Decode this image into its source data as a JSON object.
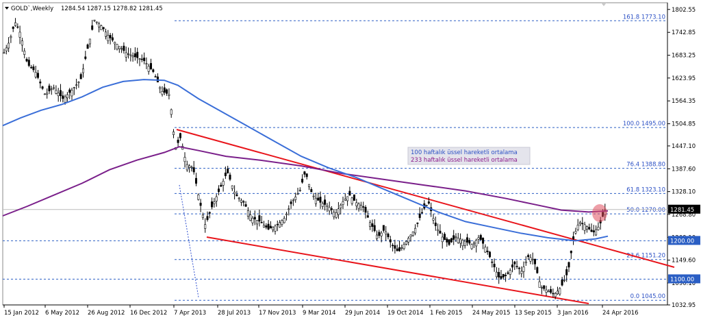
{
  "header": {
    "symbol": "GOLD`,Weekly",
    "ohlc": "1284.54 1287.15 1278.82 1281.45"
  },
  "chart_data": {
    "type": "candlestick",
    "ylim": [
      1032.95,
      1820
    ],
    "y_ticks": [
      "1802.55",
      "1742.85",
      "1683.25",
      "1623.95",
      "1564.35",
      "1504.85",
      "1447.10",
      "1387.60",
      "1328.10",
      "1268.80",
      "1209.10",
      "1149.60",
      "1090.10",
      "1032.95"
    ],
    "x_ticks": [
      "15 Jan 2012",
      "6 May 2012",
      "26 Aug 2012",
      "16 Dec 2012",
      "7 Apr 2013",
      "28 Jul 2013",
      "17 Nov 2013",
      "9 Mar 2014",
      "29 Jun 2014",
      "19 Oct 2014",
      "1 Feb 2015",
      "24 May 2015",
      "13 Sep 2015",
      "3 Jan 2016",
      "24 Apr 2016"
    ],
    "fib_levels": [
      {
        "label": "161.8 1773.10",
        "value": 1773.1
      },
      {
        "label": "100.0 1495.00",
        "value": 1495.0
      },
      {
        "label": "76.4 1388.80",
        "value": 1388.8
      },
      {
        "label": "61.8 1323.10",
        "value": 1323.1
      },
      {
        "label": "50.0 1270.00",
        "value": 1270.0
      },
      {
        "label": "23.6 1151.20",
        "value": 1151.2
      },
      {
        "label": "0.0 1045.00",
        "value": 1045.0
      }
    ],
    "price_tags": [
      {
        "label": "1281.45",
        "value": 1281.45,
        "color": "#000000"
      },
      {
        "label": "1200.00",
        "value": 1200.0,
        "color": "#2a5ec4"
      },
      {
        "label": "1100.00",
        "value": 1100.0,
        "color": "#2a5ec4"
      }
    ],
    "legend": [
      {
        "label": "100 haftalık üssel hareketli ortalama",
        "color": "#3a6ed8"
      },
      {
        "label": "233 haftalık üssel hareketli ortalama",
        "color": "#7a1f8a"
      }
    ],
    "colors": {
      "channel": "#e8141a",
      "ema100": "#3a6ed8",
      "ema233": "#7a1f8a",
      "fib": "#2a5ec4",
      "highlight": "#e05060"
    }
  }
}
